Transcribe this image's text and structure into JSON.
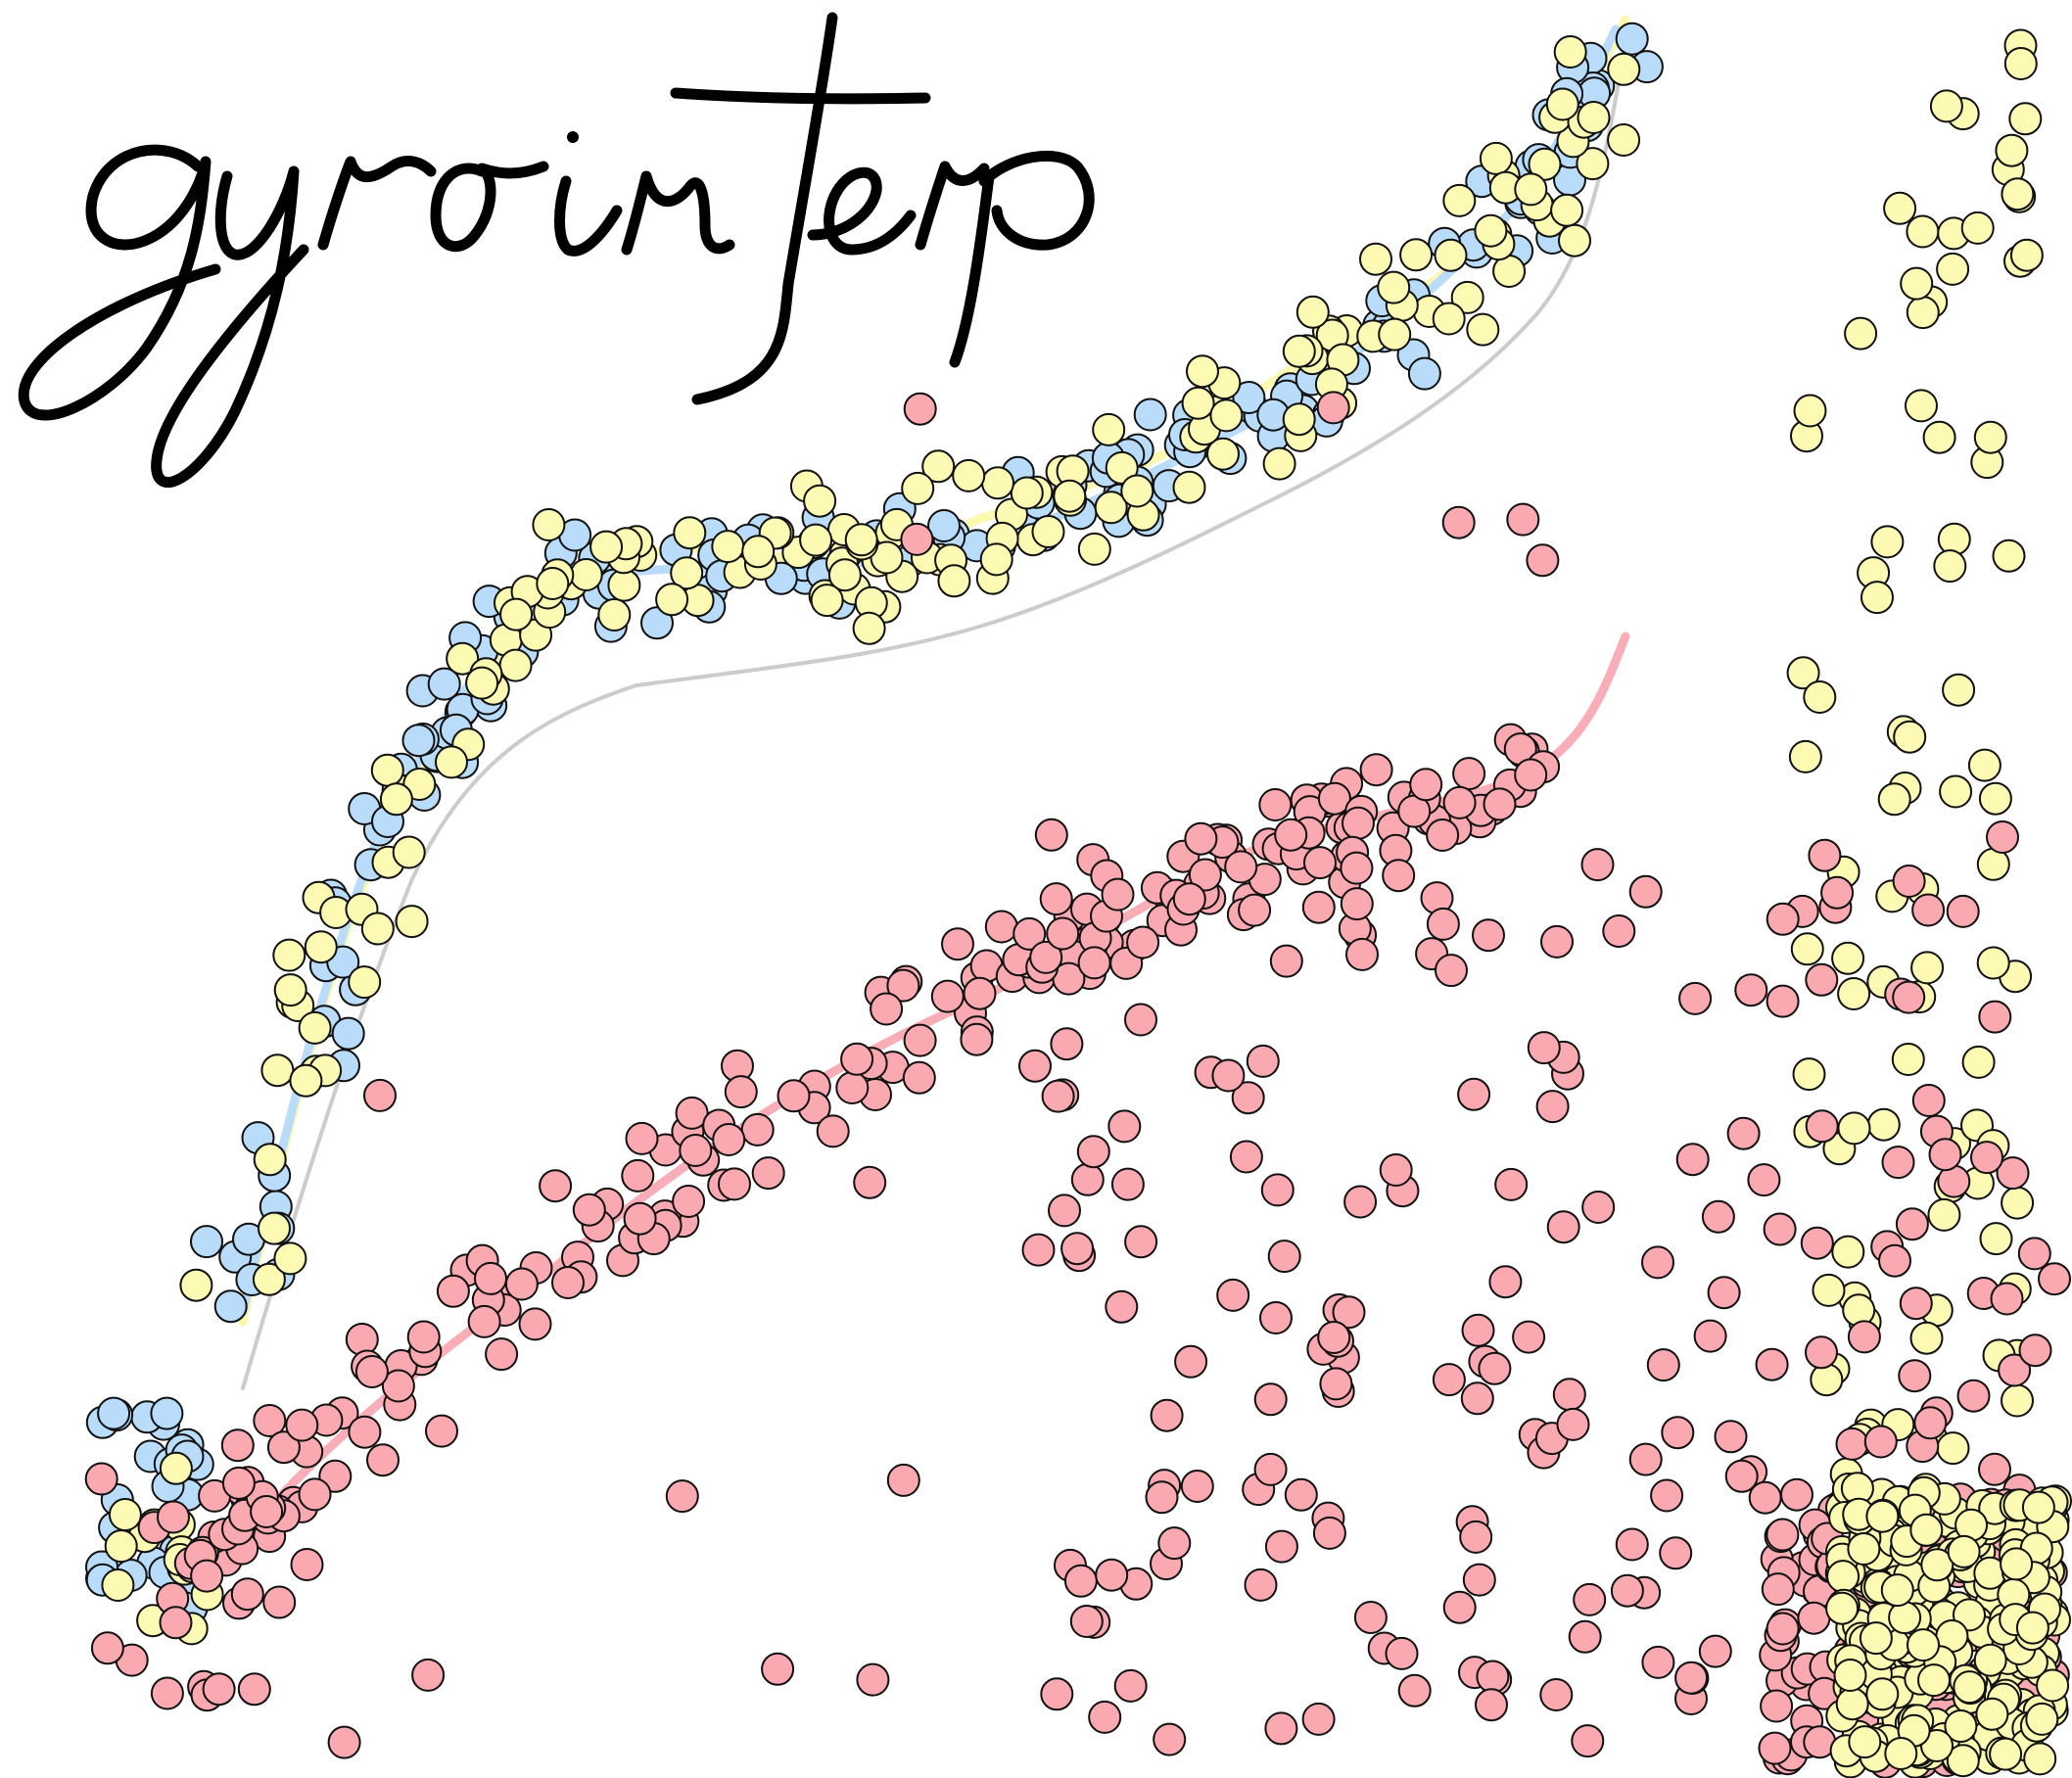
{
  "logo": {
    "text": "gyrointerp"
  },
  "colors": {
    "background": "#ffffff",
    "blue_points": "#b8dcf9",
    "yellow_points": "#fcfab3",
    "red_points": "#fba9b1",
    "blue_curve": "#b8dcf9",
    "yellow_curve": "#fbf9b0",
    "red_curve": "#f9adb7",
    "gray_curve": "#cccccc",
    "outline": "#111111",
    "logo_ink": "#000000"
  }
}
